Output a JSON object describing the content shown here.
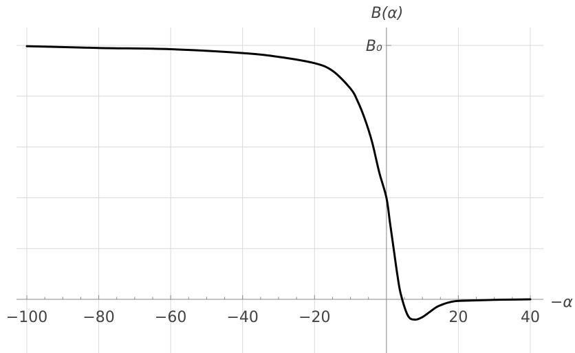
{
  "chart_data": {
    "type": "line",
    "title": "",
    "xlabel": "−α",
    "ylabel": "B(α)",
    "xlim": [
      -100,
      40
    ],
    "ylim": [
      -0.08,
      1.07
    ],
    "grid": true,
    "x_ticks": [
      -100,
      -80,
      -60,
      -40,
      -20,
      0,
      20,
      40
    ],
    "x_tick_labels": [
      "−100",
      "−80",
      "−60",
      "−40",
      "−20",
      "",
      "20",
      "40"
    ],
    "y_ticks": [
      1
    ],
    "y_tick_labels": [
      "B₀"
    ],
    "series": [
      {
        "color": "#000000",
        "x": [
          -100,
          -80,
          -60,
          -40,
          -30,
          -20,
          -15,
          -10,
          -8,
          -6,
          -4,
          -2,
          0,
          1,
          2,
          3,
          4,
          6,
          8,
          10,
          12,
          14,
          16,
          18,
          20,
          25,
          30,
          35,
          40
        ],
        "y": [
          0.997,
          0.99,
          0.985,
          0.97,
          0.955,
          0.93,
          0.9,
          0.83,
          0.78,
          0.71,
          0.62,
          0.5,
          0.4,
          0.3,
          0.2,
          0.1,
          0.02,
          -0.065,
          -0.08,
          -0.07,
          -0.05,
          -0.03,
          -0.018,
          -0.01,
          -0.006,
          -0.004,
          -0.002,
          -0.001,
          0.0
        ]
      }
    ]
  }
}
